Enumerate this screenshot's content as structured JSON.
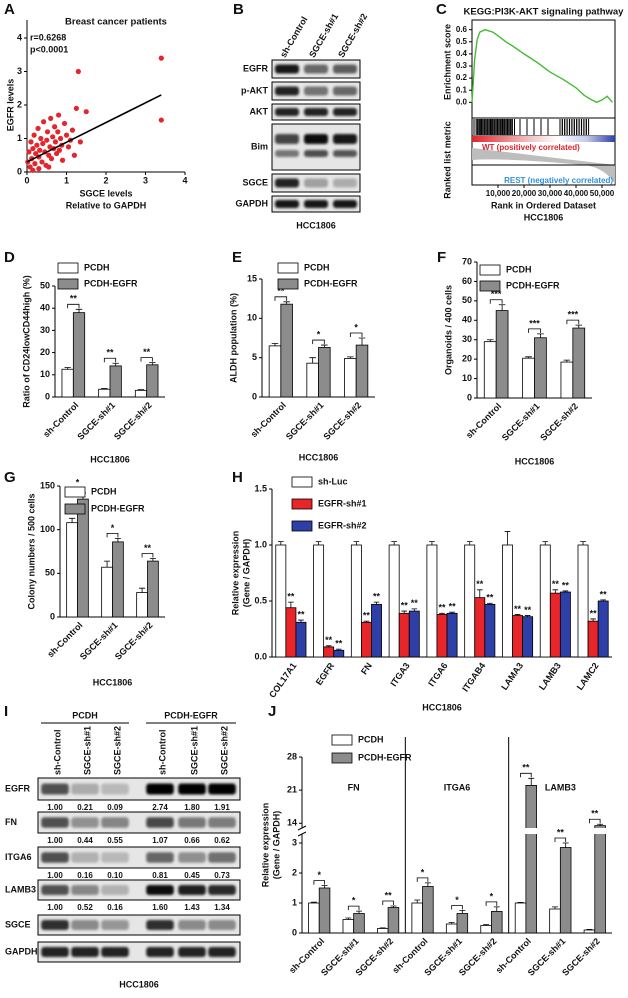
{
  "chart_data": [
    {
      "panel": "A",
      "type": "scatter",
      "title": "Breast cancer patients",
      "annotations": [
        "r=0.6268",
        "p<0.0001"
      ],
      "x_label": [
        "SGCE levels",
        "Relative to GAPDH"
      ],
      "y_label": "EGFR levels",
      "xlim": [
        0,
        4
      ],
      "xticks": [
        0,
        1,
        2,
        3,
        4
      ],
      "ylim": [
        0,
        4
      ],
      "yticks": [
        0,
        1,
        2,
        3,
        4
      ],
      "color": "#e3262b",
      "x": [
        0.02,
        0.05,
        0.08,
        0.1,
        0.12,
        0.15,
        0.18,
        0.2,
        0.22,
        0.25,
        0.28,
        0.3,
        0.32,
        0.35,
        0.38,
        0.4,
        0.42,
        0.45,
        0.48,
        0.5,
        0.52,
        0.55,
        0.58,
        0.6,
        0.62,
        0.65,
        0.68,
        0.7,
        0.72,
        0.75,
        0.78,
        0.8,
        0.82,
        0.85,
        0.88,
        0.9,
        0.95,
        1.0,
        1.05,
        1.1,
        1.15,
        1.2,
        1.25,
        1.3,
        1.35,
        1.5,
        0.15,
        0.3,
        0.55,
        3.4,
        3.4
      ],
      "y": [
        0.3,
        0.6,
        0.15,
        0.9,
        0.4,
        0.7,
        1.1,
        0.25,
        0.55,
        0.8,
        1.3,
        0.45,
        0.65,
        1.0,
        0.3,
        0.85,
        1.5,
        0.6,
        0.2,
        0.95,
        1.2,
        0.5,
        0.75,
        1.6,
        0.4,
        1.05,
        0.7,
        1.35,
        0.9,
        0.55,
        1.2,
        1.7,
        0.65,
        1.0,
        0.8,
        0.35,
        1.45,
        1.1,
        0.75,
        0.95,
        1.25,
        0.5,
        1.9,
        3.0,
        0.9,
        1.8,
        0.05,
        0.1,
        0.15,
        3.4,
        1.55
      ],
      "fit": {
        "x": [
          0,
          3.4
        ],
        "y": [
          0.3,
          2.3
        ]
      }
    },
    {
      "panel": "C",
      "type": "line",
      "title": "KEGG:PI3K-AKT signaling pathway",
      "y_label": "Enrichment score",
      "metric_label": "Ranked list metric",
      "annotations": [
        "WT (positively correlated)",
        "REST (negatively correlated)"
      ],
      "x_label": [
        "Rank in Ordered Dataset",
        "HCC1806"
      ],
      "color": "#44bb33",
      "xlim": [
        0,
        55000
      ],
      "xticks": [
        {
          "value": 10000,
          "label": "10,000"
        },
        {
          "value": 20000,
          "label": "20,000"
        },
        {
          "value": 30000,
          "label": "30,000"
        },
        {
          "value": 40000,
          "label": "40,000"
        },
        {
          "value": 50000,
          "label": "50,000"
        }
      ],
      "ylim": [
        -0.08,
        0.68
      ],
      "yticks": [
        {
          "value": 0,
          "label": "0.0"
        },
        {
          "value": 0.1,
          "label": "0.1"
        },
        {
          "value": 0.2,
          "label": "0.2"
        },
        {
          "value": 0.3,
          "label": "0.3"
        },
        {
          "value": 0.4,
          "label": "0.4"
        },
        {
          "value": 0.5,
          "label": "0.5"
        },
        {
          "value": 0.6,
          "label": "0.6"
        }
      ],
      "x": [
        0,
        1000,
        2000,
        3000,
        5000,
        8000,
        10000,
        13000,
        16000,
        20000,
        25000,
        30000,
        35000,
        40000,
        43000,
        46000,
        48000,
        50000,
        52000,
        54000
      ],
      "y": [
        0,
        0.35,
        0.52,
        0.58,
        0.6,
        0.58,
        0.55,
        0.5,
        0.46,
        0.4,
        0.33,
        0.25,
        0.19,
        0.12,
        0.06,
        0.02,
        0,
        0.02,
        0.05,
        0
      ]
    },
    {
      "panel": "D",
      "type": "bar",
      "y_label": "Ratio of CD24lowCD44high (%)",
      "x_label": "HCC1806",
      "categories": [
        "sh-Control",
        "SGCE-sh#1",
        "SGCE-sh#2"
      ],
      "ylim": [
        0,
        50
      ],
      "yticks": [
        0,
        10,
        20,
        30,
        40,
        50
      ],
      "series": [
        {
          "name": "PCDH",
          "color": "#ffffff",
          "values": [
            12.5,
            3.5,
            3
          ],
          "errors": [
            0.8,
            0.3,
            0.3
          ]
        },
        {
          "name": "PCDH-EGFR",
          "color": "#8c8c8c",
          "values": [
            38,
            14,
            14.5
          ],
          "errors": [
            1.5,
            1.2,
            1
          ]
        }
      ],
      "significance": [
        "**",
        "**",
        "**"
      ]
    },
    {
      "panel": "E",
      "type": "bar",
      "y_label": "ALDH population (%)",
      "x_label": "HCC1806",
      "categories": [
        "sh-Control",
        "SGCE-sh#1",
        "SGCE-sh#2"
      ],
      "ylim": [
        0,
        15
      ],
      "yticks": [
        0,
        5,
        10,
        15
      ],
      "series": [
        {
          "name": "PCDH",
          "color": "#ffffff",
          "values": [
            6.5,
            4.3,
            4.9
          ],
          "errors": [
            0.3,
            0.7,
            0.2
          ]
        },
        {
          "name": "PCDH-EGFR",
          "color": "#8c8c8c",
          "values": [
            11.8,
            6.3,
            6.6
          ],
          "errors": [
            0.3,
            0.3,
            0.9
          ]
        }
      ],
      "significance": [
        "**",
        "*",
        "*"
      ]
    },
    {
      "panel": "F",
      "type": "bar",
      "y_label": "Organoids / 400 cells",
      "x_label": "HCC1806",
      "categories": [
        "sh-Control",
        "SGCE-sh#1",
        "SGCE-sh#2"
      ],
      "ylim": [
        0,
        70
      ],
      "yticks": [
        0,
        10,
        20,
        30,
        40,
        50,
        60,
        70
      ],
      "series": [
        {
          "name": "PCDH",
          "color": "#ffffff",
          "values": [
            29,
            20.5,
            18.5
          ],
          "errors": [
            1,
            0.7,
            1
          ]
        },
        {
          "name": "PCDH-EGFR",
          "color": "#8c8c8c",
          "values": [
            45,
            31,
            36
          ],
          "errors": [
            3,
            2,
            1.5
          ]
        }
      ],
      "significance": [
        "***",
        "***",
        "***"
      ]
    },
    {
      "panel": "G",
      "type": "bar",
      "y_label": "Colony numbers / 500 cells",
      "x_label": "HCC1806",
      "categories": [
        "sh-Control",
        "SGCE-sh#1",
        "SGCE-sh#2"
      ],
      "ylim": [
        0,
        150
      ],
      "yticks": [
        0,
        50,
        100,
        150
      ],
      "series": [
        {
          "name": "PCDH",
          "color": "#ffffff",
          "values": [
            108,
            57,
            28
          ],
          "errors": [
            5,
            7,
            5
          ]
        },
        {
          "name": "PCDH-EGFR",
          "color": "#8c8c8c",
          "values": [
            135,
            86,
            64
          ],
          "errors": [
            7,
            4,
            3
          ]
        }
      ],
      "significance": [
        "*",
        "*",
        "**"
      ]
    },
    {
      "panel": "H",
      "type": "bar",
      "y_label": [
        "Relative expression",
        "(Gene / GAPDH)"
      ],
      "x_label": "HCC1806",
      "categories": [
        "COL17A1",
        "EGFR",
        "FN",
        "ITGA3",
        "ITGA6",
        "ITGAB4",
        "LAMA3",
        "LAMB3",
        "LAMC2"
      ],
      "ylim": [
        0,
        1.5
      ],
      "yticks": [
        {
          "value": 0,
          "label": "0.0"
        },
        {
          "value": 0.5,
          "label": "0.5"
        },
        {
          "value": 1,
          "label": "1.0"
        },
        {
          "value": 1.5,
          "label": "1.5"
        }
      ],
      "series": [
        {
          "name": "sh-Luc",
          "color": "#ffffff",
          "values": [
            1,
            1,
            1,
            1,
            1,
            1,
            1,
            1,
            1
          ],
          "errors": [
            0.03,
            0.03,
            0.03,
            0.03,
            0.03,
            0.03,
            0.12,
            0.03,
            0.03
          ]
        },
        {
          "name": "EGFR-sh#1",
          "color": "#e8262a",
          "values": [
            0.44,
            0.09,
            0.31,
            0.39,
            0.38,
            0.53,
            0.37,
            0.57,
            0.32
          ],
          "errors": [
            0.05,
            0.01,
            0.01,
            0.02,
            0.01,
            0.07,
            0.01,
            0.03,
            0.02
          ],
          "significance": [
            "**",
            "**",
            "**",
            "**",
            "**",
            "**",
            "**",
            "**",
            "**"
          ]
        },
        {
          "name": "EGFR-sh#2",
          "color": "#2e3fa8",
          "values": [
            0.31,
            0.06,
            0.47,
            0.41,
            0.39,
            0.47,
            0.36,
            0.58,
            0.5
          ],
          "errors": [
            0.02,
            0.01,
            0.02,
            0.02,
            0.01,
            0.01,
            0.01,
            0.01,
            0.01
          ],
          "significance": [
            "**",
            "**",
            "**",
            "**",
            "**",
            "**",
            "**",
            "**",
            "**"
          ]
        }
      ]
    },
    {
      "panel": "J",
      "type": "bar",
      "y_label": [
        "Relative expression",
        "(Gene / GAPDH)"
      ],
      "groups": [
        "FN",
        "ITGA6",
        "LAMB3"
      ],
      "categories": [
        "sh-Control",
        "SGCE-sh#1",
        "SGCE-sh#2",
        "sh-Control",
        "SGCE-sh#1",
        "SGCE-sh#2",
        "sh-Control",
        "SGCE-sh#1",
        "SGCE-sh#2"
      ],
      "ylim": [
        0,
        28
      ],
      "ybreak": [
        3.3,
        13
      ],
      "yticks": [
        0,
        1,
        2,
        3,
        14,
        21,
        28
      ],
      "series": [
        {
          "name": "PCDH",
          "color": "#ffffff",
          "values": [
            1,
            0.45,
            0.15,
            1,
            0.3,
            0.25,
            1,
            0.8,
            0.1
          ],
          "errors": [
            0.03,
            0.05,
            0.02,
            0.1,
            0.05,
            0.03,
            0.02,
            0.07,
            0.02
          ]
        },
        {
          "name": "PCDH-EGFR",
          "color": "#8c8c8c",
          "values": [
            1.5,
            0.65,
            0.85,
            1.55,
            0.65,
            0.72,
            22,
            2.85,
            13.5
          ],
          "errors": [
            0.08,
            0.08,
            0.05,
            0.12,
            0.1,
            0.15,
            1.5,
            0.15,
            0.3
          ]
        }
      ],
      "significance": [
        "*",
        "*",
        "**",
        "*",
        "*",
        "*",
        "**",
        "**",
        "**"
      ]
    }
  ],
  "blots": [
    {
      "panel": "B",
      "lanes": [
        "sh-Control",
        "SGCE-sh#1",
        "SGCE-sh#2"
      ],
      "rows": [
        {
          "name": "EGFR"
        },
        {
          "name": "p-AKT"
        },
        {
          "name": "AKT"
        },
        {
          "name": "Bim"
        },
        {
          "name": "SGCE"
        },
        {
          "name": "GAPDH"
        }
      ],
      "cell_line": "HCC1806"
    },
    {
      "panel": "I",
      "groups": [
        "PCDH",
        "PCDH-EGFR"
      ],
      "lanes": [
        "sh-Control",
        "SGCE-sh#1",
        "SGCE-sh#2",
        "sh-Control",
        "SGCE-sh#1",
        "SGCE-sh#2"
      ],
      "rows": [
        {
          "name": "EGFR",
          "values": [
            1,
            0.21,
            0.09,
            2.74,
            1.8,
            1.91
          ],
          "value_labels": [
            "1.00",
            "0.21",
            "0.09",
            "2.74",
            "1.80",
            "1.91"
          ]
        },
        {
          "name": "FN",
          "values": [
            1,
            0.44,
            0.55,
            1.07,
            0.66,
            0.62
          ],
          "value_labels": [
            "1.00",
            "0.44",
            "0.55",
            "1.07",
            "0.66",
            "0.62"
          ]
        },
        {
          "name": "ITGA6",
          "values": [
            1,
            0.16,
            0.1,
            0.81,
            0.45,
            0.73
          ],
          "value_labels": [
            "1.00",
            "0.16",
            "0.10",
            "0.81",
            "0.45",
            "0.73"
          ]
        },
        {
          "name": "LAMB3",
          "values": [
            1,
            0.52,
            0.16,
            1.6,
            1.43,
            1.34
          ],
          "value_labels": [
            "1.00",
            "0.52",
            "0.16",
            "1.60",
            "1.43",
            "1.34"
          ]
        },
        {
          "name": "SGCE"
        },
        {
          "name": "GAPDH"
        }
      ],
      "cell_line": "HCC1806"
    }
  ]
}
